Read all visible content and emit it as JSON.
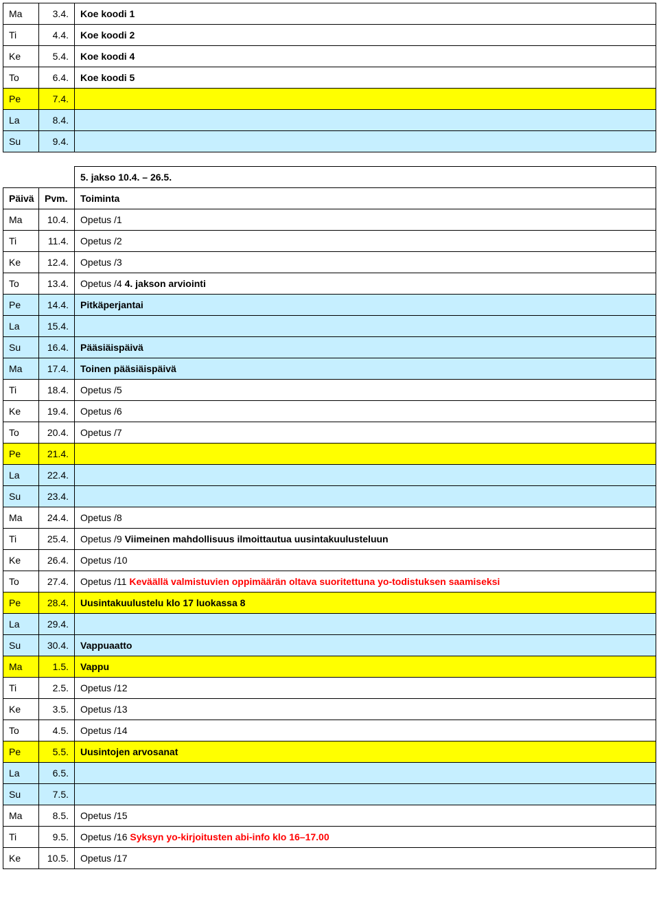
{
  "colors": {
    "white": "#ffffff",
    "yellow": "#ffff00",
    "lightblue": "#c6efff",
    "black": "#000000",
    "red": "#ff0000"
  },
  "table1": {
    "rows": [
      {
        "day": "Ma",
        "date": "3.4.",
        "desc": "Koe koodi 1",
        "bg": "white",
        "bold": true
      },
      {
        "day": "Ti",
        "date": "4.4.",
        "desc": "Koe koodi 2",
        "bg": "white",
        "bold": true
      },
      {
        "day": "Ke",
        "date": "5.4.",
        "desc": "Koe koodi 4",
        "bg": "white",
        "bold": true
      },
      {
        "day": "To",
        "date": "6.4.",
        "desc": "Koe koodi 5",
        "bg": "white",
        "bold": true
      },
      {
        "day": "Pe",
        "date": "7.4.",
        "desc": "",
        "bg": "yellow"
      },
      {
        "day": "La",
        "date": "8.4.",
        "desc": "",
        "bg": "lightblue"
      },
      {
        "day": "Su",
        "date": "9.4.",
        "desc": "",
        "bg": "lightblue"
      }
    ]
  },
  "table2": {
    "header": {
      "period": "5. jakso 10.4. – 26.5.",
      "day": "Päivä",
      "date": "Pvm.",
      "desc": "Toiminta"
    },
    "rows": [
      {
        "day": "Ma",
        "date": "10.4.",
        "desc": "Opetus /1",
        "bg": "white"
      },
      {
        "day": "Ti",
        "date": "11.4.",
        "desc": "Opetus /2",
        "bg": "white"
      },
      {
        "day": "Ke",
        "date": "12.4.",
        "desc": "Opetus /3",
        "bg": "white"
      },
      {
        "day": "To",
        "date": "13.4.",
        "desc": "Opetus /4  4. jakson arviointi",
        "bg": "white",
        "boldTail": "4. jakson arviointi",
        "plain": "Opetus /4  "
      },
      {
        "day": "Pe",
        "date": "14.4.",
        "desc": "Pitkäperjantai",
        "bg": "lightblue",
        "bold": true
      },
      {
        "day": "La",
        "date": "15.4.",
        "desc": "",
        "bg": "lightblue"
      },
      {
        "day": "Su",
        "date": "16.4.",
        "desc": "Pääsiäispäivä",
        "bg": "lightblue",
        "bold": true
      },
      {
        "day": "Ma",
        "date": "17.4.",
        "desc": "Toinen pääsiäispäivä",
        "bg": "lightblue",
        "bold": true
      },
      {
        "day": "Ti",
        "date": "18.4.",
        "desc": "Opetus /5",
        "bg": "white"
      },
      {
        "day": "Ke",
        "date": "19.4.",
        "desc": "Opetus /6",
        "bg": "white"
      },
      {
        "day": "To",
        "date": "20.4.",
        "desc": "Opetus /7",
        "bg": "white"
      },
      {
        "day": "Pe",
        "date": "21.4.",
        "desc": "",
        "bg": "yellow"
      },
      {
        "day": "La",
        "date": "22.4.",
        "desc": "",
        "bg": "lightblue"
      },
      {
        "day": "Su",
        "date": "23.4.",
        "desc": "",
        "bg": "lightblue"
      },
      {
        "day": "Ma",
        "date": "24.4.",
        "desc": "Opetus /8",
        "bg": "white"
      },
      {
        "day": "Ti",
        "date": "25.4.",
        "desc": "Opetus /9 Viimeinen mahdollisuus ilmoittautua uusintakuulusteluun",
        "bg": "white",
        "plain": "Opetus /9 ",
        "boldTail": "Viimeinen mahdollisuus ilmoittautua uusintakuulusteluun"
      },
      {
        "day": "Ke",
        "date": "26.4.",
        "desc": "Opetus /10",
        "bg": "white"
      },
      {
        "day": "To",
        "date": "27.4.",
        "bg": "white",
        "plain": "Opetus /11  ",
        "redTail": "Keväällä valmistuvien oppimäärän oltava suoritettuna yo-todistuksen saamiseksi"
      },
      {
        "day": "Pe",
        "date": "28.4.",
        "desc": "Uusintakuulustelu klo 17 luokassa 8",
        "bg": "yellow",
        "bold": true
      },
      {
        "day": "La",
        "date": "29.4.",
        "desc": "",
        "bg": "lightblue"
      },
      {
        "day": "Su",
        "date": "30.4.",
        "desc": "Vappuaatto",
        "bg": "lightblue",
        "bold": true
      },
      {
        "day": "Ma",
        "date": "1.5.",
        "desc": "Vappu",
        "bg": "yellow",
        "bold": true
      },
      {
        "day": "Ti",
        "date": "2.5.",
        "desc": "Opetus /12",
        "bg": "white"
      },
      {
        "day": "Ke",
        "date": "3.5.",
        "desc": "Opetus /13",
        "bg": "white"
      },
      {
        "day": "To",
        "date": "4.5.",
        "desc": "Opetus /14",
        "bg": "white"
      },
      {
        "day": "Pe",
        "date": "5.5.",
        "desc": "Uusintojen arvosanat",
        "bg": "yellow",
        "bold": true
      },
      {
        "day": "La",
        "date": "6.5.",
        "desc": "",
        "bg": "lightblue"
      },
      {
        "day": "Su",
        "date": "7.5.",
        "desc": "",
        "bg": "lightblue"
      },
      {
        "day": "Ma",
        "date": "8.5.",
        "desc": "Opetus /15",
        "bg": "white"
      },
      {
        "day": "Ti",
        "date": "9.5.",
        "bg": "white",
        "plain": "Opetus /16 ",
        "redTail": "Syksyn yo-kirjoitusten abi-info klo 16–17.00"
      },
      {
        "day": "Ke",
        "date": "10.5.",
        "desc": "Opetus /17",
        "bg": "white"
      }
    ]
  }
}
